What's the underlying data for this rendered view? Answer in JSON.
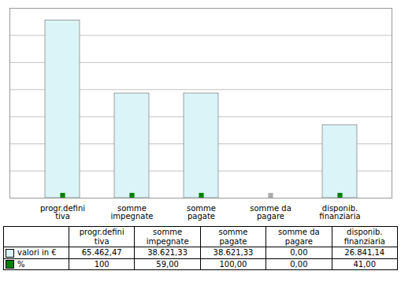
{
  "chart_data": {
    "type": "bar",
    "categories": [
      "progr.defini\ntiva",
      "somme\nimpegnate",
      "somme\npagate",
      "somme da\npagare",
      "disponib.\nfinanziaria"
    ],
    "series": [
      {
        "name": "valori in €",
        "type": "bar",
        "color": "#daf4f8",
        "values": [
          65462.47,
          38621.33,
          38621.33,
          0.0,
          26841.14
        ],
        "value_labels": [
          "65.462,47",
          "38.621,33",
          "38.621,33",
          "0,00",
          "26.841,14"
        ]
      },
      {
        "name": "%",
        "type": "table",
        "marker": "square",
        "color": "#008000",
        "colors": [
          "#008000",
          "#008000",
          "#008000",
          "#aaaaaa",
          "#008000"
        ],
        "values": [
          100,
          59,
          100,
          0,
          41
        ],
        "value_labels": [
          "100",
          "59,00",
          "100,00",
          "0,00",
          "41,00"
        ]
      }
    ],
    "ylim": [
      0,
      70000
    ],
    "yticks": [
      0,
      10000,
      20000,
      30000,
      40000,
      50000,
      60000,
      70000
    ],
    "grid": true,
    "tick_labels": "x"
  }
}
